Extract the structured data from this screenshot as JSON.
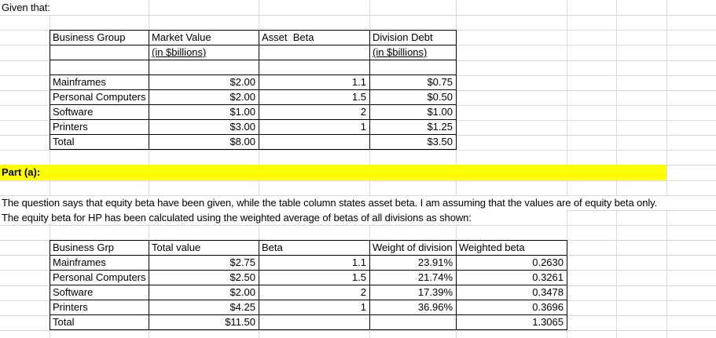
{
  "page": {
    "given_label": "Given that:",
    "part_a_label": "Part (a):",
    "note_line1": "The question says that equity beta have been given, while the table column states asset beta. I am assuming that the values are of equity beta only.",
    "note_line2": "The equity beta for HP has been calculated using the weighted average of betas of all divisions as shown:"
  },
  "colors": {
    "highlight": "#ffff00",
    "gridline": "#d9d9d9",
    "table_border": "#000000",
    "text": "#000000"
  },
  "given_table": {
    "headers": [
      "Business Group",
      "Market Value",
      "Asset  Beta",
      "Division Debt"
    ],
    "subheaders": [
      "",
      "(in $billions)",
      "",
      "(in $billions)"
    ],
    "rows": [
      [
        "",
        "",
        "",
        ""
      ],
      [
        "Mainframes",
        "$2.00",
        "1.1",
        "$0.75"
      ],
      [
        "Personal Computers",
        "$2.00",
        "1.5",
        "$0.50"
      ],
      [
        "Software",
        "$1.00",
        "2",
        "$1.00"
      ],
      [
        "Printers",
        "$3.00",
        "1",
        "$1.25"
      ],
      [
        "Total",
        "$8.00",
        "",
        "$3.50"
      ]
    ]
  },
  "weighted_table": {
    "headers": [
      "Business Grp",
      "Total value",
      "Beta",
      "Weight of division",
      "Weighted beta"
    ],
    "rows": [
      [
        "Mainframes",
        "$2.75",
        "1.1",
        "23.91%",
        "0.2630"
      ],
      [
        "Personal Computers",
        "$2.50",
        "1.5",
        "21.74%",
        "0.3261"
      ],
      [
        "Software",
        "$2.00",
        "2",
        "17.39%",
        "0.3478"
      ],
      [
        "Printers",
        "$4.25",
        "1",
        "36.96%",
        "0.3696"
      ],
      [
        "Total",
        "$11.50",
        "",
        "",
        "1.3065"
      ]
    ]
  }
}
